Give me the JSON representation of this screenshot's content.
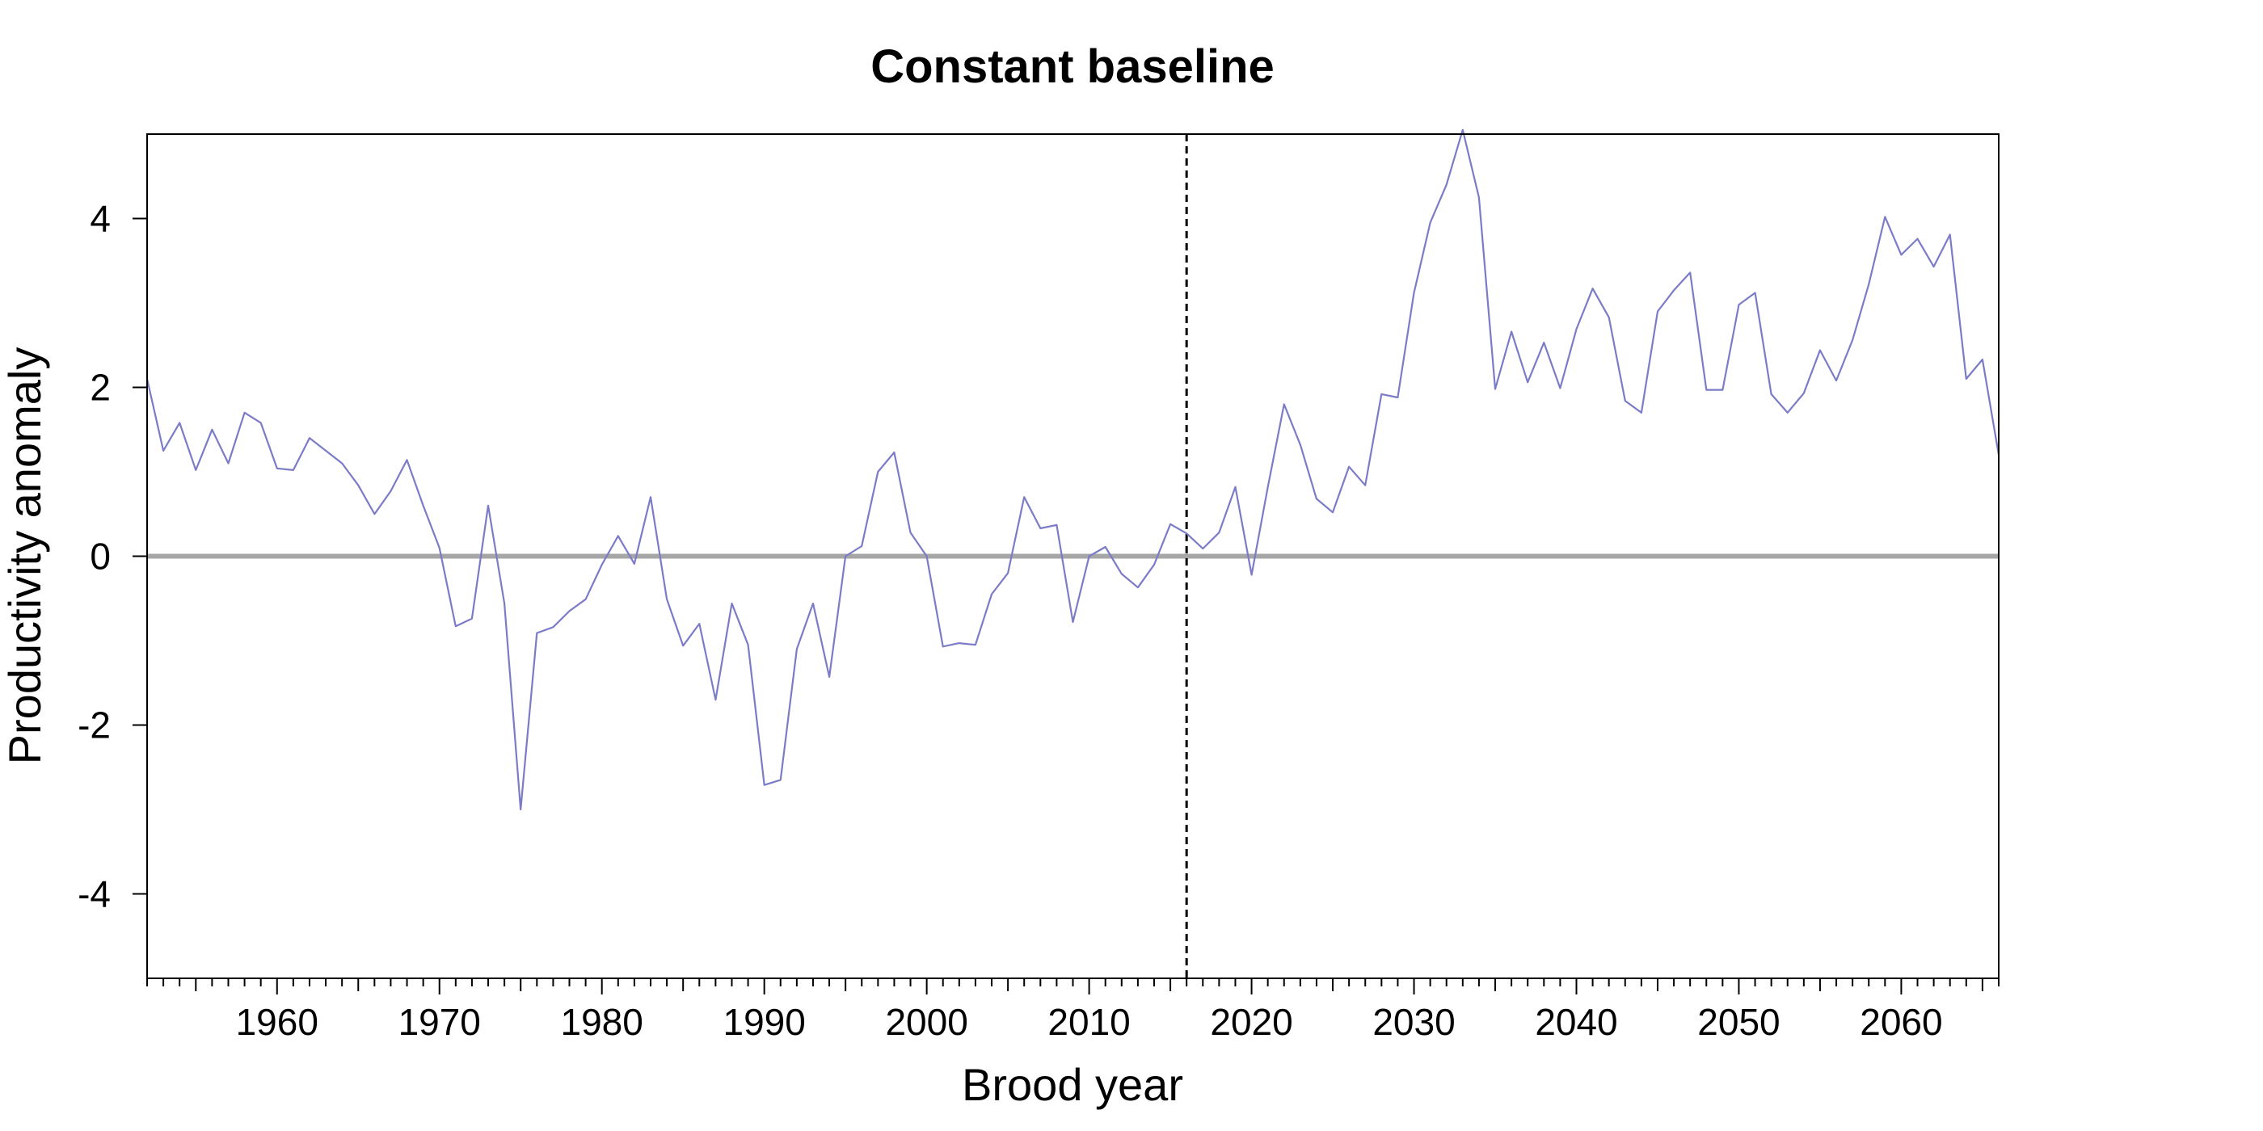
{
  "chart_data": {
    "type": "line",
    "title": "Constant baseline",
    "xlabel": "Brood year",
    "ylabel": "Productivity anomaly",
    "xlim": [
      1952,
      2066
    ],
    "ylim": [
      -5,
      5
    ],
    "x_ticks": [
      1960,
      1970,
      1980,
      1990,
      2000,
      2010,
      2020,
      2030,
      2040,
      2050,
      2060
    ],
    "x_tick_labels": [
      "1960",
      "1970",
      "1980",
      "1990",
      "2000",
      "2010",
      "2020",
      "2030",
      "2040",
      "2050",
      "2060"
    ],
    "y_ticks": [
      -4,
      -2,
      0,
      2,
      4
    ],
    "y_tick_labels": [
      "-4",
      "-2",
      "0",
      "2",
      "4"
    ],
    "reference_line_y": 0,
    "vertical_dashed_line_x": 2016,
    "grid": false,
    "line_color": "#7b7bc8",
    "reference_line_color": "#a6a6a6",
    "series": [
      {
        "x": [
          1952,
          1953,
          1954,
          1955,
          1956,
          1957,
          1958,
          1959,
          1960,
          1961,
          1962,
          1963,
          1964,
          1965,
          1966,
          1967,
          1968,
          1969,
          1970,
          1971,
          1972,
          1973,
          1974,
          1975,
          1976,
          1977,
          1978,
          1979,
          1980,
          1981,
          1982,
          1983,
          1984,
          1985,
          1986,
          1987,
          1988,
          1989,
          1990,
          1991,
          1992,
          1993,
          1994,
          1995,
          1996,
          1997,
          1998,
          1999,
          2000,
          2001,
          2002,
          2003,
          2004,
          2005,
          2006,
          2007,
          2008,
          2009,
          2010,
          2011,
          2012,
          2013,
          2014,
          2015,
          2016,
          2017,
          2018,
          2019,
          2020,
          2021,
          2022,
          2023,
          2024,
          2025,
          2026,
          2027,
          2028,
          2029,
          2030,
          2031,
          2032,
          2033,
          2034,
          2035,
          2036,
          2037,
          2038,
          2039,
          2040,
          2041,
          2042,
          2043,
          2044,
          2045,
          2046,
          2047,
          2048,
          2049,
          2050,
          2051,
          2052,
          2053,
          2054,
          2055,
          2056,
          2057,
          2058,
          2059,
          2060,
          2061,
          2062,
          2063,
          2064,
          2065,
          2066
        ],
        "values": [
          2.1,
          1.25,
          1.58,
          1.02,
          1.5,
          1.1,
          1.7,
          1.58,
          1.04,
          1.02,
          1.4,
          1.25,
          1.1,
          0.84,
          0.5,
          0.77,
          1.14,
          0.6,
          0.1,
          -0.83,
          -0.74,
          0.6,
          -0.56,
          -3.0,
          -0.91,
          -0.84,
          -0.65,
          -0.51,
          -0.1,
          0.24,
          -0.09,
          0.7,
          -0.51,
          -1.06,
          -0.8,
          -1.7,
          -0.56,
          -1.05,
          -2.71,
          -2.65,
          -1.1,
          -0.56,
          -1.43,
          0.0,
          0.12,
          1.0,
          1.23,
          0.28,
          0.0,
          -1.07,
          -1.03,
          -1.05,
          -0.45,
          -0.2,
          0.7,
          0.33,
          0.37,
          -0.78,
          0.0,
          0.11,
          -0.21,
          -0.37,
          -0.1,
          0.38,
          0.27,
          0.09,
          0.28,
          0.82,
          -0.22,
          0.82,
          1.8,
          1.32,
          0.68,
          0.52,
          1.06,
          0.84,
          1.92,
          1.88,
          3.12,
          3.95,
          4.4,
          5.05,
          4.25,
          1.98,
          2.66,
          2.06,
          2.53,
          1.99,
          2.69,
          3.17,
          2.83,
          1.84,
          1.7,
          2.9,
          3.15,
          3.36,
          1.97,
          1.97,
          2.98,
          3.12,
          1.92,
          1.7,
          1.93,
          2.44,
          2.08,
          2.56,
          3.22,
          4.02,
          3.57,
          3.76,
          3.43,
          3.81,
          2.1,
          2.33,
          1.2
        ]
      }
    ]
  }
}
